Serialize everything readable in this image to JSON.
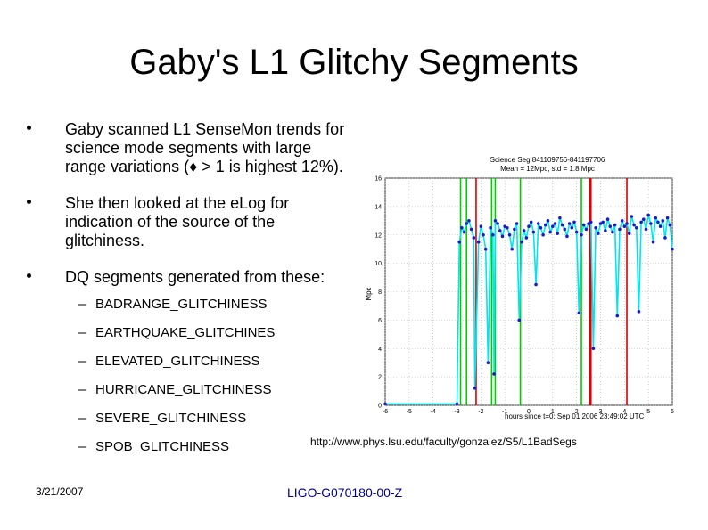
{
  "slide": {
    "title": "Gaby's L1 Glitchy Segments",
    "bullets": [
      "Gaby scanned L1 SenseMon trends for science mode segments with large range variations (♦ > 1 is highest 12%).",
      "She then looked at the eLog for indication of the source of the glitchiness.",
      "DQ segments generated from these:"
    ],
    "segments": [
      "BADRANGE_GLITCHINESS",
      "EARTHQUAKE_GLITCHINES",
      "ELEVATED_GLITCHINESS",
      "HURRICANE_GLITCHINESS",
      "SEVERE_GLITCHINESS",
      "SPOB_GLITCHINESS"
    ],
    "url": "http://www.phys.lsu.edu/faculty/gonzalez/S5/L1BadSegs",
    "date": "3/21/2007",
    "doc_id": "LIGO-G070180-00-Z"
  },
  "chart_data": {
    "type": "line",
    "title": "Science Seg 841109756-841197706",
    "subtitle": "Mean = 12Mpc, std = 1.8 Mpc",
    "xlabel": "hours since t=0: Sep 01 2006 23:49:02 UTC",
    "ylabel": "Mpc",
    "xlim": [
      -6,
      6
    ],
    "ylim": [
      0,
      16
    ],
    "xticks": [
      "-6",
      "-5",
      "-4",
      "-3",
      "-2",
      "-1",
      "0",
      "1",
      "2",
      "3",
      "4",
      "5",
      "6"
    ],
    "yticks": [
      "0",
      "2",
      "4",
      "6",
      "8",
      "10",
      "12",
      "14",
      "16"
    ],
    "grid": true,
    "colors": {
      "line": "#00e5ee",
      "points": "#1a1acc",
      "green": "#00cc00",
      "red": "#dd0000"
    },
    "markers_green": [
      -2.85,
      -2.6,
      -1.55,
      -1.4,
      -0.35,
      2.2
    ],
    "markers_red": [
      -2.2,
      2.6,
      2.55,
      4.1
    ],
    "series": [
      {
        "x": [
          -6.0,
          -3.0,
          -2.9,
          -2.8,
          -2.7,
          -2.6,
          -2.5,
          -2.4,
          -2.3,
          -2.25,
          -2.1,
          -2.0,
          -1.9,
          -1.8,
          -1.7,
          -1.6,
          -1.5,
          -1.45,
          -1.4,
          -1.3,
          -1.2,
          -1.1,
          -1.0,
          -0.9,
          -0.8,
          -0.7,
          -0.6,
          -0.5,
          -0.4,
          -0.3,
          -0.2,
          -0.1,
          0.0,
          0.1,
          0.2,
          0.3,
          0.4,
          0.5,
          0.6,
          0.7,
          0.8,
          0.9,
          1.0,
          1.1,
          1.2,
          1.3,
          1.4,
          1.5,
          1.6,
          1.7,
          1.8,
          1.9,
          2.0,
          2.1,
          2.2,
          2.3,
          2.4,
          2.5,
          2.6,
          2.7,
          2.8,
          2.9,
          3.0,
          3.1,
          3.2,
          3.3,
          3.4,
          3.5,
          3.6,
          3.7,
          3.8,
          3.9,
          4.0,
          4.1,
          4.2,
          4.3,
          4.4,
          4.5,
          4.6,
          4.7,
          4.8,
          4.9,
          5.0,
          5.1,
          5.2,
          5.3,
          5.4,
          5.5,
          5.6,
          5.7,
          5.8,
          5.9,
          6.0
        ],
        "values": [
          0.1,
          0.1,
          11.5,
          12.5,
          12.2,
          12.8,
          13.0,
          12.4,
          11.8,
          1.2,
          11.5,
          12.6,
          12.0,
          11.0,
          3.0,
          12.5,
          12.0,
          2.2,
          13.0,
          12.8,
          12.3,
          11.9,
          12.6,
          12.5,
          12.0,
          11.0,
          12.4,
          12.8,
          6.0,
          11.5,
          12.3,
          11.8,
          12.6,
          12.9,
          12.2,
          8.5,
          12.8,
          12.5,
          12.0,
          12.7,
          13.0,
          12.2,
          12.6,
          12.8,
          12.1,
          13.2,
          12.7,
          12.4,
          11.9,
          12.8,
          12.5,
          12.9,
          12.2,
          6.5,
          12.0,
          12.7,
          12.4,
          12.8,
          12.9,
          4.0,
          12.5,
          12.1,
          12.8,
          12.9,
          12.3,
          13.1,
          12.6,
          12.2,
          12.7,
          6.3,
          12.4,
          13.0,
          12.6,
          12.8,
          12.1,
          13.3,
          12.7,
          12.5,
          6.6,
          12.9,
          13.1,
          12.4,
          13.4,
          12.8,
          11.5,
          13.2,
          12.9,
          12.6,
          13.0,
          11.8,
          13.2,
          12.7,
          11.0
        ]
      }
    ]
  }
}
